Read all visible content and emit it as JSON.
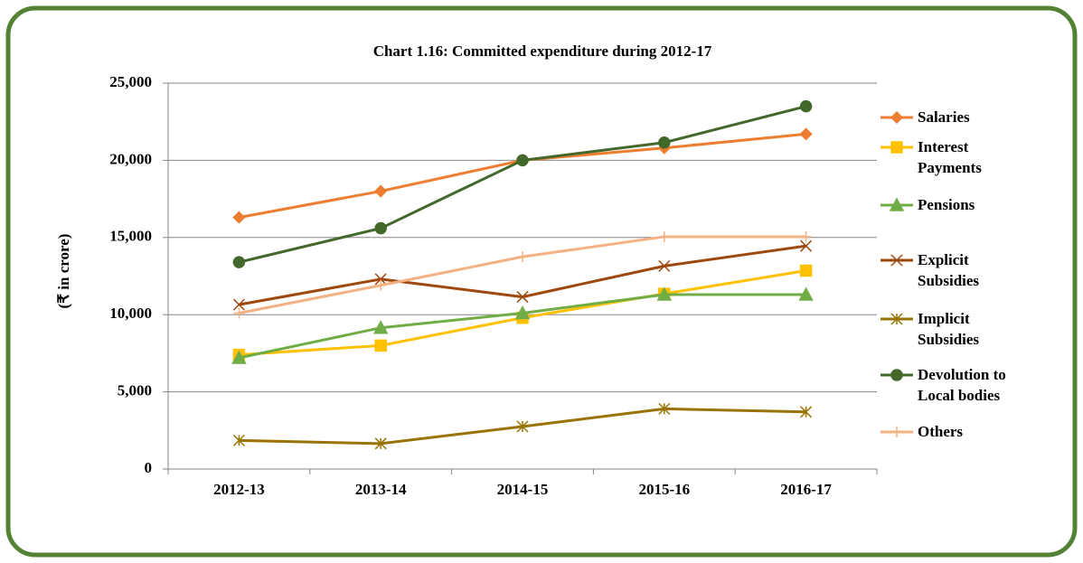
{
  "chart_data": {
    "type": "line",
    "title": "Chart 1.16: Committed expenditure  during 2012-17",
    "y_label": "(₹ in crore)",
    "categories": [
      "2012-13",
      "2013-14",
      "2014-15",
      "2015-16",
      "2016-17"
    ],
    "ylim": [
      0,
      25000
    ],
    "yticks": [
      0,
      {
        "value": 5000,
        "label": "5,000"
      },
      {
        "value": 10000,
        "label": "10,000"
      },
      {
        "value": 15000,
        "label": "15,000"
      },
      {
        "value": 20000,
        "label": "20,000"
      },
      {
        "value": 25000,
        "label": "25,000"
      }
    ],
    "grid": true,
    "legend": "right",
    "series": [
      {
        "name": "Salaries",
        "color": "#ED7D31",
        "marker": "diamond",
        "values": [
          16300,
          18000,
          20000,
          20800,
          21700
        ]
      },
      {
        "name": "Interest Payments",
        "color": "#FFC000",
        "marker": "square",
        "values": [
          7400,
          8000,
          9800,
          11350,
          12850
        ]
      },
      {
        "name": "Pensions",
        "color": "#70AD47",
        "marker": "triangle",
        "values": [
          7200,
          9150,
          10100,
          11300,
          11300
        ]
      },
      {
        "name": "Explicit Subsidies",
        "color": "#9E480E",
        "marker": "x",
        "values": [
          10650,
          12300,
          11150,
          13150,
          14450
        ]
      },
      {
        "name": "Implicit Subsidies",
        "color": "#997300",
        "marker": "star",
        "values": [
          1850,
          1650,
          2750,
          3900,
          3700
        ]
      },
      {
        "name": "Devolution to Local bodies",
        "color": "#43682B",
        "marker": "circle",
        "values": [
          13400,
          15600,
          20000,
          21150,
          23500
        ]
      },
      {
        "name": "Others",
        "color": "#F4B183",
        "marker": "plus",
        "values": [
          10100,
          11900,
          13750,
          15050,
          15050
        ]
      }
    ]
  }
}
